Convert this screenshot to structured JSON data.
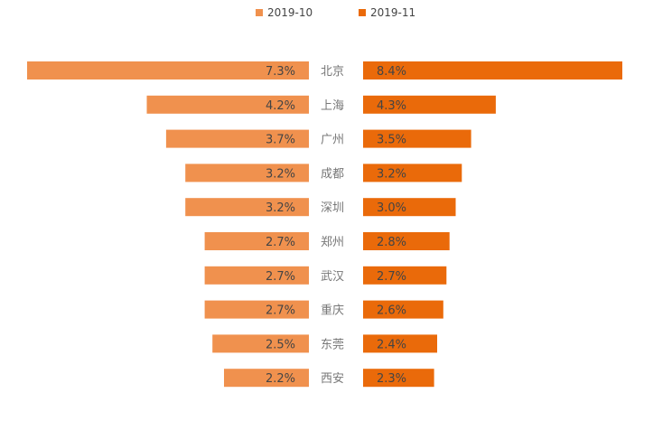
{
  "chart_data": {
    "type": "bar",
    "orientation": "horizontal-butterfly",
    "categories": [
      "北京",
      "上海",
      "广州",
      "成都",
      "深圳",
      "郑州",
      "武汉",
      "重庆",
      "东莞",
      "西安"
    ],
    "series": [
      {
        "name": "2019-10",
        "color": "#F0914E",
        "values": [
          7.3,
          4.2,
          3.7,
          3.2,
          3.2,
          2.7,
          2.7,
          2.7,
          2.5,
          2.2
        ],
        "labels": [
          "7.3%",
          "4.2%",
          "3.7%",
          "3.2%",
          "3.2%",
          "2.7%",
          "2.7%",
          "2.7%",
          "2.5%",
          "2.2%"
        ]
      },
      {
        "name": "2019-11",
        "color": "#EA6A0A",
        "values": [
          8.4,
          4.3,
          3.5,
          3.2,
          3.0,
          2.8,
          2.7,
          2.6,
          2.4,
          2.3
        ],
        "labels": [
          "8.4%",
          "4.3%",
          "3.5%",
          "3.2%",
          "3.0%",
          "2.8%",
          "2.7%",
          "2.6%",
          "2.4%",
          "2.3%"
        ]
      }
    ],
    "value_unit": "%",
    "legend_position": "top-center",
    "grid": false
  }
}
